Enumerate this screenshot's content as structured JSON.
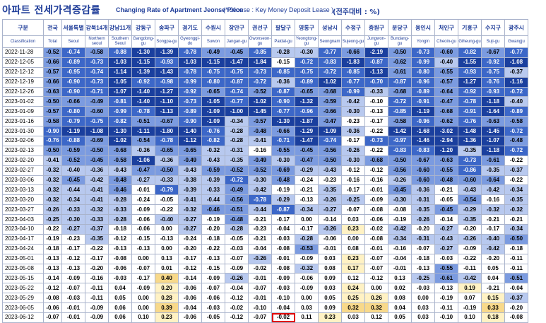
{
  "title": {
    "korean": "아파트 전세가격증감률",
    "english": "Changing Rate of Apartment Jeonse Price",
    "note": "(* Jeonse : Key Money Deposit Lease )",
    "unit": "(전주대비 : %)"
  },
  "colors": {
    "neg_strong": "#1a3f9e",
    "neg_mid": "#3c67c8",
    "neg_light": "#7b9be0",
    "neg_faint": "#b8c9ef",
    "zero_white": "#ffffff",
    "pos_light": "#fff2c4",
    "pos_mid": "#f8d98a",
    "highlight_border": "#e00000"
  },
  "chart_data": {
    "type": "table",
    "columns": [
      {
        "ko": "구분",
        "en": "Classification"
      },
      {
        "ko": "전국",
        "en": "Total"
      },
      {
        "ko": "서울특별",
        "en": "Seoul"
      },
      {
        "ko": "강북14개",
        "en": "Northern seoul"
      },
      {
        "ko": "강남11개",
        "en": "Southern Seoul"
      },
      {
        "ko": "강동구",
        "en": "Gangdong-gu"
      },
      {
        "ko": "송파구",
        "en": "Songpa-gu"
      },
      {
        "ko": "경기도",
        "en": "Gyeonggi-do"
      },
      {
        "ko": "수원시",
        "en": "Suwon"
      },
      {
        "ko": "장안구",
        "en": "Jangan-gu"
      },
      {
        "ko": "권선구",
        "en": "Gwonseon-gu"
      },
      {
        "ko": "팔달구",
        "en": "Paldal-gu"
      },
      {
        "ko": "영통구",
        "en": "Yeongtong-gu"
      },
      {
        "ko": "성남시",
        "en": "Seongnam"
      },
      {
        "ko": "수정구",
        "en": "Sujeong-gu"
      },
      {
        "ko": "중원구",
        "en": "Jungwon-gu"
      },
      {
        "ko": "분당구",
        "en": "Bundang-gu"
      },
      {
        "ko": "용인시",
        "en": "Yongin"
      },
      {
        "ko": "처인구",
        "en": "Cheoin-gu"
      },
      {
        "ko": "기흥구",
        "en": "Giheung-gu"
      },
      {
        "ko": "수지구",
        "en": "Suji-gu"
      },
      {
        "ko": "광주시",
        "en": "Gwangju"
      }
    ],
    "rows": [
      {
        "date": "2022-11-28",
        "values": [
          -0.52,
          -0.74,
          -0.58,
          -0.88,
          -1.3,
          -1.39,
          -0.78,
          -0.49,
          -0.45,
          -0.85,
          -0.28,
          -0.3,
          -0.77,
          -0.66,
          -2.19,
          -0.5,
          -0.73,
          -0.6,
          -0.82,
          -0.67,
          -0.77
        ]
      },
      {
        "date": "2022-12-05",
        "values": [
          -0.66,
          -0.89,
          -0.73,
          -1.03,
          -1.15,
          -0.93,
          -1.03,
          -1.15,
          -1.47,
          -1.84,
          -0.15,
          -0.72,
          -0.83,
          -1.83,
          -0.87,
          -0.62,
          -0.99,
          -0.4,
          -1.55,
          -0.92,
          -1.08
        ]
      },
      {
        "date": "2022-12-12",
        "values": [
          -0.57,
          -0.95,
          -0.74,
          -1.14,
          -1.39,
          -1.43,
          -0.78,
          -0.75,
          -0.75,
          -0.73,
          -0.85,
          -0.75,
          -0.72,
          -0.85,
          -1.13,
          -0.61,
          -0.8,
          -0.55,
          -0.93,
          -0.75,
          -0.37
        ]
      },
      {
        "date": "2022-12-19",
        "values": [
          -0.66,
          -0.9,
          -0.73,
          -1.05,
          -0.92,
          -0.98,
          -0.99,
          -0.8,
          -0.87,
          -0.72,
          -0.36,
          -0.89,
          -1.02,
          -0.77,
          -0.7,
          -0.87,
          -0.96,
          -0.57,
          -1.27,
          -0.76,
          -1.16
        ]
      },
      {
        "date": "2022-12-26",
        "values": [
          -0.63,
          -0.9,
          -0.71,
          -1.07,
          -1.4,
          -1.27,
          -0.92,
          -0.65,
          -0.74,
          -0.52,
          -0.87,
          -0.65,
          -0.68,
          -0.99,
          -0.33,
          -0.68,
          -0.89,
          -0.64,
          -0.92,
          -0.93,
          -0.72
        ]
      },
      {
        "date": "2023-01-02",
        "values": [
          -0.5,
          -0.66,
          -0.49,
          -0.81,
          -1.4,
          -1.1,
          -0.73,
          -1.05,
          -0.77,
          -1.02,
          -0.9,
          -1.32,
          -0.59,
          -0.42,
          -0.1,
          -0.72,
          -0.91,
          -0.47,
          -0.78,
          -1.18,
          -0.4
        ]
      },
      {
        "date": "2023-01-09",
        "values": [
          -0.57,
          -0.8,
          -0.6,
          -0.99,
          -0.78,
          -1.13,
          -0.89,
          -1.09,
          -1.0,
          -1.45,
          -0.77,
          -0.96,
          -0.66,
          -0.3,
          -0.13,
          -0.85,
          -1.19,
          -0.68,
          -0.91,
          -1.64,
          -0.89
        ]
      },
      {
        "date": "2023-01-16",
        "values": [
          -0.58,
          -0.79,
          -0.75,
          -0.82,
          -0.51,
          -0.67,
          -0.9,
          -1.09,
          -0.34,
          -0.57,
          -1.3,
          -1.87,
          -0.47,
          -0.23,
          -0.17,
          -0.58,
          -0.96,
          -0.62,
          -0.76,
          -0.63,
          -0.58
        ]
      },
      {
        "date": "2023-01-30",
        "values": [
          -0.9,
          -1.19,
          -1.08,
          -1.3,
          -1.11,
          -1.8,
          -1.4,
          -0.76,
          -0.28,
          -0.48,
          -0.66,
          -1.29,
          -1.09,
          -0.36,
          -0.22,
          -1.42,
          -1.68,
          -3.02,
          -1.48,
          -1.45,
          -0.72
        ]
      },
      {
        "date": "2023-02-06",
        "values": [
          -0.76,
          -0.88,
          -0.69,
          -1.02,
          -0.54,
          -0.78,
          -1.12,
          -0.82,
          -0.28,
          -0.41,
          -0.71,
          -1.47,
          -0.74,
          -0.17,
          -0.73,
          -0.97,
          -1.46,
          -2.94,
          -1.36,
          -1.07,
          -0.48
        ]
      },
      {
        "date": "2023-02-13",
        "values": [
          -0.5,
          -0.59,
          -0.5,
          -0.68,
          -0.36,
          -0.65,
          -0.65,
          -0.32,
          -0.31,
          -0.16,
          -0.55,
          -0.45,
          -0.56,
          -0.26,
          -0.22,
          -0.83,
          -0.83,
          -1.2,
          -0.35,
          -1.18,
          -0.72
        ]
      },
      {
        "date": "2023-02-20",
        "values": [
          -0.41,
          -0.52,
          -0.45,
          -0.58,
          -1.06,
          -0.36,
          -0.49,
          -0.43,
          -0.35,
          -0.49,
          -0.3,
          -0.47,
          -0.5,
          -0.3,
          -0.68,
          -0.5,
          -0.67,
          -0.63,
          -0.73,
          -0.61,
          -0.22
        ]
      },
      {
        "date": "2023-02-27",
        "values": [
          -0.32,
          -0.4,
          -0.36,
          -0.43,
          -0.47,
          -0.5,
          -0.43,
          -0.59,
          -0.52,
          -0.52,
          -0.69,
          -0.29,
          -0.43,
          -0.12,
          -0.12,
          -0.56,
          -0.6,
          -0.55,
          -0.86,
          -0.35,
          -0.37
        ]
      },
      {
        "date": "2023-03-06",
        "values": [
          -0.32,
          -0.45,
          -0.42,
          -0.48,
          -0.27,
          -0.33,
          -0.38,
          -0.39,
          -0.72,
          -0.3,
          -0.48,
          -0.24,
          -0.23,
          -0.16,
          -0.16,
          -0.26,
          -0.6,
          -0.48,
          -0.6,
          -0.64,
          -0.22
        ]
      },
      {
        "date": "2023-03-13",
        "values": [
          -0.32,
          -0.44,
          -0.41,
          -0.46,
          -0.01,
          -0.79,
          -0.39,
          -0.33,
          -0.49,
          -0.42,
          -0.19,
          -0.21,
          -0.35,
          -0.17,
          -0.01,
          -0.45,
          -0.36,
          -0.21,
          -0.43,
          -0.42,
          -0.34
        ]
      },
      {
        "date": "2023-03-20",
        "values": [
          -0.32,
          -0.34,
          -0.41,
          -0.28,
          -0.24,
          -0.05,
          -0.41,
          -0.44,
          -0.56,
          -0.78,
          -0.29,
          -0.13,
          -0.26,
          -0.25,
          -0.09,
          -0.3,
          -0.31,
          -0.05,
          -0.54,
          -0.16,
          -0.35
        ]
      },
      {
        "date": "2023-03-27",
        "values": [
          -0.26,
          -0.33,
          -0.32,
          -0.33,
          -0.09,
          -0.22,
          -0.32,
          -0.46,
          -0.51,
          -0.44,
          -0.87,
          -0.34,
          -0.27,
          -0.07,
          -0.08,
          -0.08,
          -0.35,
          -0.45,
          -0.29,
          -0.32,
          -0.32
        ]
      },
      {
        "date": "2023-04-03",
        "values": [
          -0.25,
          -0.3,
          -0.33,
          -0.28,
          -0.06,
          -0.4,
          -0.27,
          -0.19,
          -0.48,
          -0.21,
          -0.17,
          0.0,
          -0.14,
          0.03,
          -0.06,
          -0.19,
          -0.26,
          -0.14,
          -0.35,
          -0.21,
          -0.21
        ]
      },
      {
        "date": "2023-04-10",
        "values": [
          -0.22,
          -0.27,
          -0.37,
          -0.18,
          -0.06,
          0.0,
          -0.27,
          -0.2,
          -0.28,
          -0.23,
          -0.04,
          -0.17,
          -0.26,
          0.23,
          -0.02,
          -0.42,
          -0.2,
          -0.27,
          -0.2,
          -0.17,
          -0.34
        ]
      },
      {
        "date": "2023-04-17",
        "values": [
          -0.19,
          -0.23,
          -0.35,
          -0.12,
          -0.15,
          -0.13,
          -0.24,
          -0.18,
          -0.05,
          -0.21,
          -0.03,
          -0.28,
          -0.06,
          0.0,
          -0.08,
          -0.34,
          -0.31,
          -0.43,
          -0.26,
          -0.4,
          -0.5
        ]
      },
      {
        "date": "2023-04-24",
        "values": [
          -0.18,
          -0.17,
          -0.22,
          -0.13,
          -0.13,
          0.0,
          -0.2,
          -0.22,
          -0.03,
          -0.04,
          -0.08,
          -0.53,
          -0.01,
          0.08,
          -0.01,
          -0.16,
          -0.07,
          -0.27,
          -0.09,
          -0.42,
          -0.18
        ]
      },
      {
        "date": "2023-05-01",
        "values": [
          -0.13,
          -0.12,
          -0.17,
          -0.08,
          0.0,
          0.13,
          -0.17,
          -0.13,
          -0.07,
          -0.26,
          -0.01,
          -0.09,
          0.03,
          0.23,
          -0.07,
          -0.04,
          -0.18,
          -0.03,
          -0.22,
          -0.2,
          -0.11
        ]
      },
      {
        "date": "2023-05-08",
        "values": [
          -0.13,
          -0.13,
          -0.2,
          -0.06,
          -0.07,
          0.01,
          -0.12,
          -0.15,
          -0.09,
          -0.02,
          -0.08,
          -0.32,
          0.08,
          0.17,
          -0.07,
          -0.01,
          -0.13,
          -0.55,
          -0.11,
          0.05,
          -0.11
        ]
      },
      {
        "date": "2023-05-15",
        "values": [
          -0.14,
          -0.09,
          -0.16,
          -0.03,
          -0.17,
          0.4,
          -0.14,
          -0.09,
          -0.26,
          -0.01,
          -0.09,
          -0.06,
          0.09,
          0.12,
          -0.12,
          0.13,
          -0.25,
          -0.61,
          -0.42,
          0.04,
          -0.51
        ]
      },
      {
        "date": "2023-05-22",
        "values": [
          -0.12,
          -0.07,
          -0.11,
          0.04,
          -0.09,
          0.2,
          -0.06,
          -0.07,
          -0.04,
          -0.07,
          -0.03,
          -0.09,
          0.03,
          0.24,
          0.0,
          0.02,
          -0.03,
          -0.13,
          0.19,
          -0.21,
          -0.04
        ]
      },
      {
        "date": "2023-05-29",
        "values": [
          -0.08,
          -0.03,
          -0.11,
          0.05,
          0.0,
          0.28,
          -0.06,
          -0.06,
          -0.12,
          -0.01,
          -0.1,
          0.0,
          0.05,
          0.25,
          0.26,
          0.08,
          0.0,
          -0.19,
          0.07,
          0.15,
          -0.37
        ]
      },
      {
        "date": "2023-06-05",
        "values": [
          -0.06,
          -0.01,
          -0.09,
          0.06,
          0.0,
          0.39,
          -0.04,
          -0.03,
          -0.02,
          -0.1,
          -0.04,
          0.03,
          0.09,
          0.32,
          0.32,
          0.04,
          0.03,
          -0.11,
          -0.19,
          0.33,
          -0.2
        ]
      },
      {
        "date": "2023-06-12",
        "values": [
          -0.07,
          -0.01,
          -0.09,
          0.06,
          0.1,
          0.23,
          -0.06,
          -0.05,
          -0.12,
          -0.07,
          -0.02,
          0.11,
          0.23,
          0.03,
          0.12,
          0.05,
          0.03,
          -0.1,
          0.1,
          0.18,
          -0.08
        ]
      }
    ],
    "highlight": {
      "row": 27,
      "col": 11
    }
  }
}
